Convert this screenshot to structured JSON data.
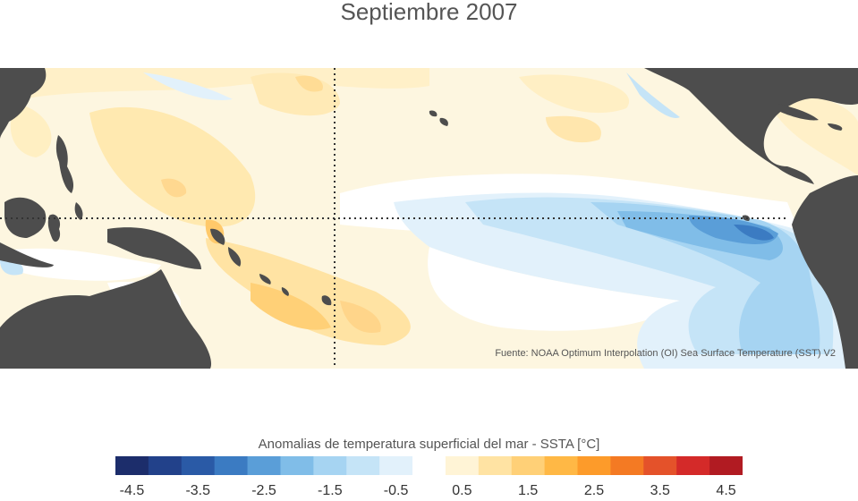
{
  "title": "Septiembre 2007",
  "source": "Fuente: NOAA Optimum Interpolation (OI) Sea Surface Temperature (SST) V2",
  "colorbar": {
    "label": "Anomalias de temperatura superficial del mar - SSTA  [°C]",
    "ticks": [
      "-4.5",
      "-3.5",
      "-2.5",
      "-1.5",
      "-0.5",
      "0.5",
      "1.5",
      "2.5",
      "3.5",
      "4.5"
    ],
    "colors": [
      "#1c2d6b",
      "#22418a",
      "#2a5aa6",
      "#3b7bc2",
      "#5a9ed8",
      "#80bde8",
      "#a6d4f2",
      "#c5e4f7",
      "#e2f1fb",
      "#ffffff",
      "#fff4d6",
      "#ffe3a3",
      "#ffd077",
      "#ffb845",
      "#fd9b2a",
      "#f47a23",
      "#e4522a",
      "#d42a29",
      "#b11b22"
    ]
  },
  "map": {
    "land_color": "#4d4d4d",
    "reference_lines": [
      "equator",
      "dateline"
    ]
  }
}
